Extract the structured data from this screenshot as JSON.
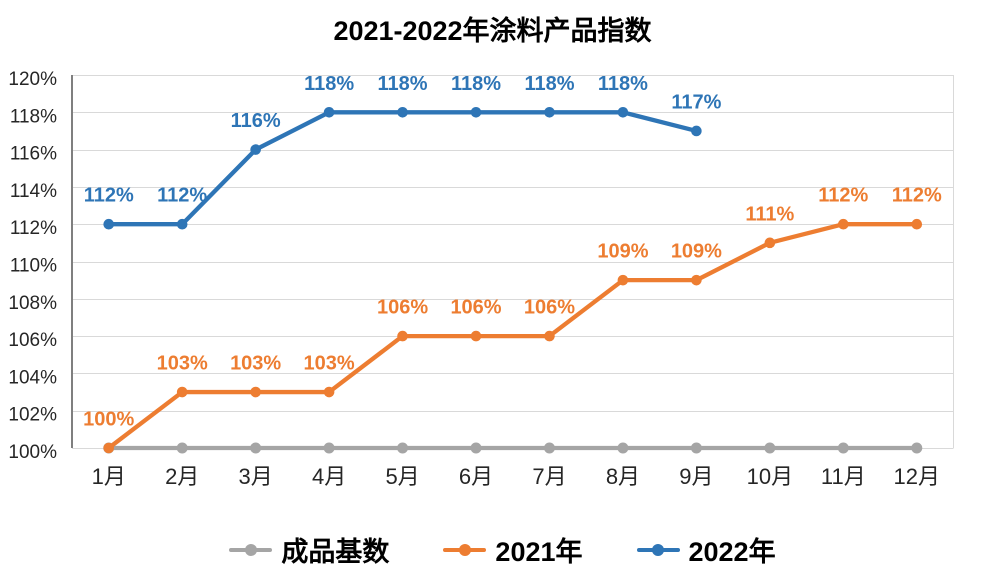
{
  "chart_data": {
    "type": "line",
    "title": "2021-2022年涂料产品指数",
    "categories": [
      "1月",
      "2月",
      "3月",
      "4月",
      "5月",
      "6月",
      "7月",
      "8月",
      "9月",
      "10月",
      "11月",
      "12月"
    ],
    "series": [
      {
        "name": "成品基数",
        "color": "#A5A5A5",
        "values": [
          100,
          100,
          100,
          100,
          100,
          100,
          100,
          100,
          100,
          100,
          100,
          100
        ],
        "labels": []
      },
      {
        "name": "2021年",
        "color": "#ED7D31",
        "values": [
          100,
          103,
          103,
          103,
          106,
          106,
          106,
          109,
          109,
          111,
          112,
          112
        ],
        "labels": [
          "100%",
          "103%",
          "103%",
          "103%",
          "106%",
          "106%",
          "106%",
          "109%",
          "109%",
          "111%",
          "112%",
          "112%"
        ]
      },
      {
        "name": "2022年",
        "color": "#2E75B6",
        "values": [
          112,
          112,
          116,
          118,
          118,
          118,
          118,
          118,
          117
        ],
        "labels": [
          "112%",
          "112%",
          "116%",
          "118%",
          "118%",
          "118%",
          "118%",
          "118%",
          "117%"
        ]
      }
    ],
    "ylim": [
      100,
      120
    ],
    "ytick_step": 2,
    "ytick_labels": [
      "100%",
      "102%",
      "104%",
      "106%",
      "108%",
      "110%",
      "112%",
      "114%",
      "116%",
      "118%",
      "120%"
    ],
    "grid": true,
    "legend_position": "bottom"
  }
}
